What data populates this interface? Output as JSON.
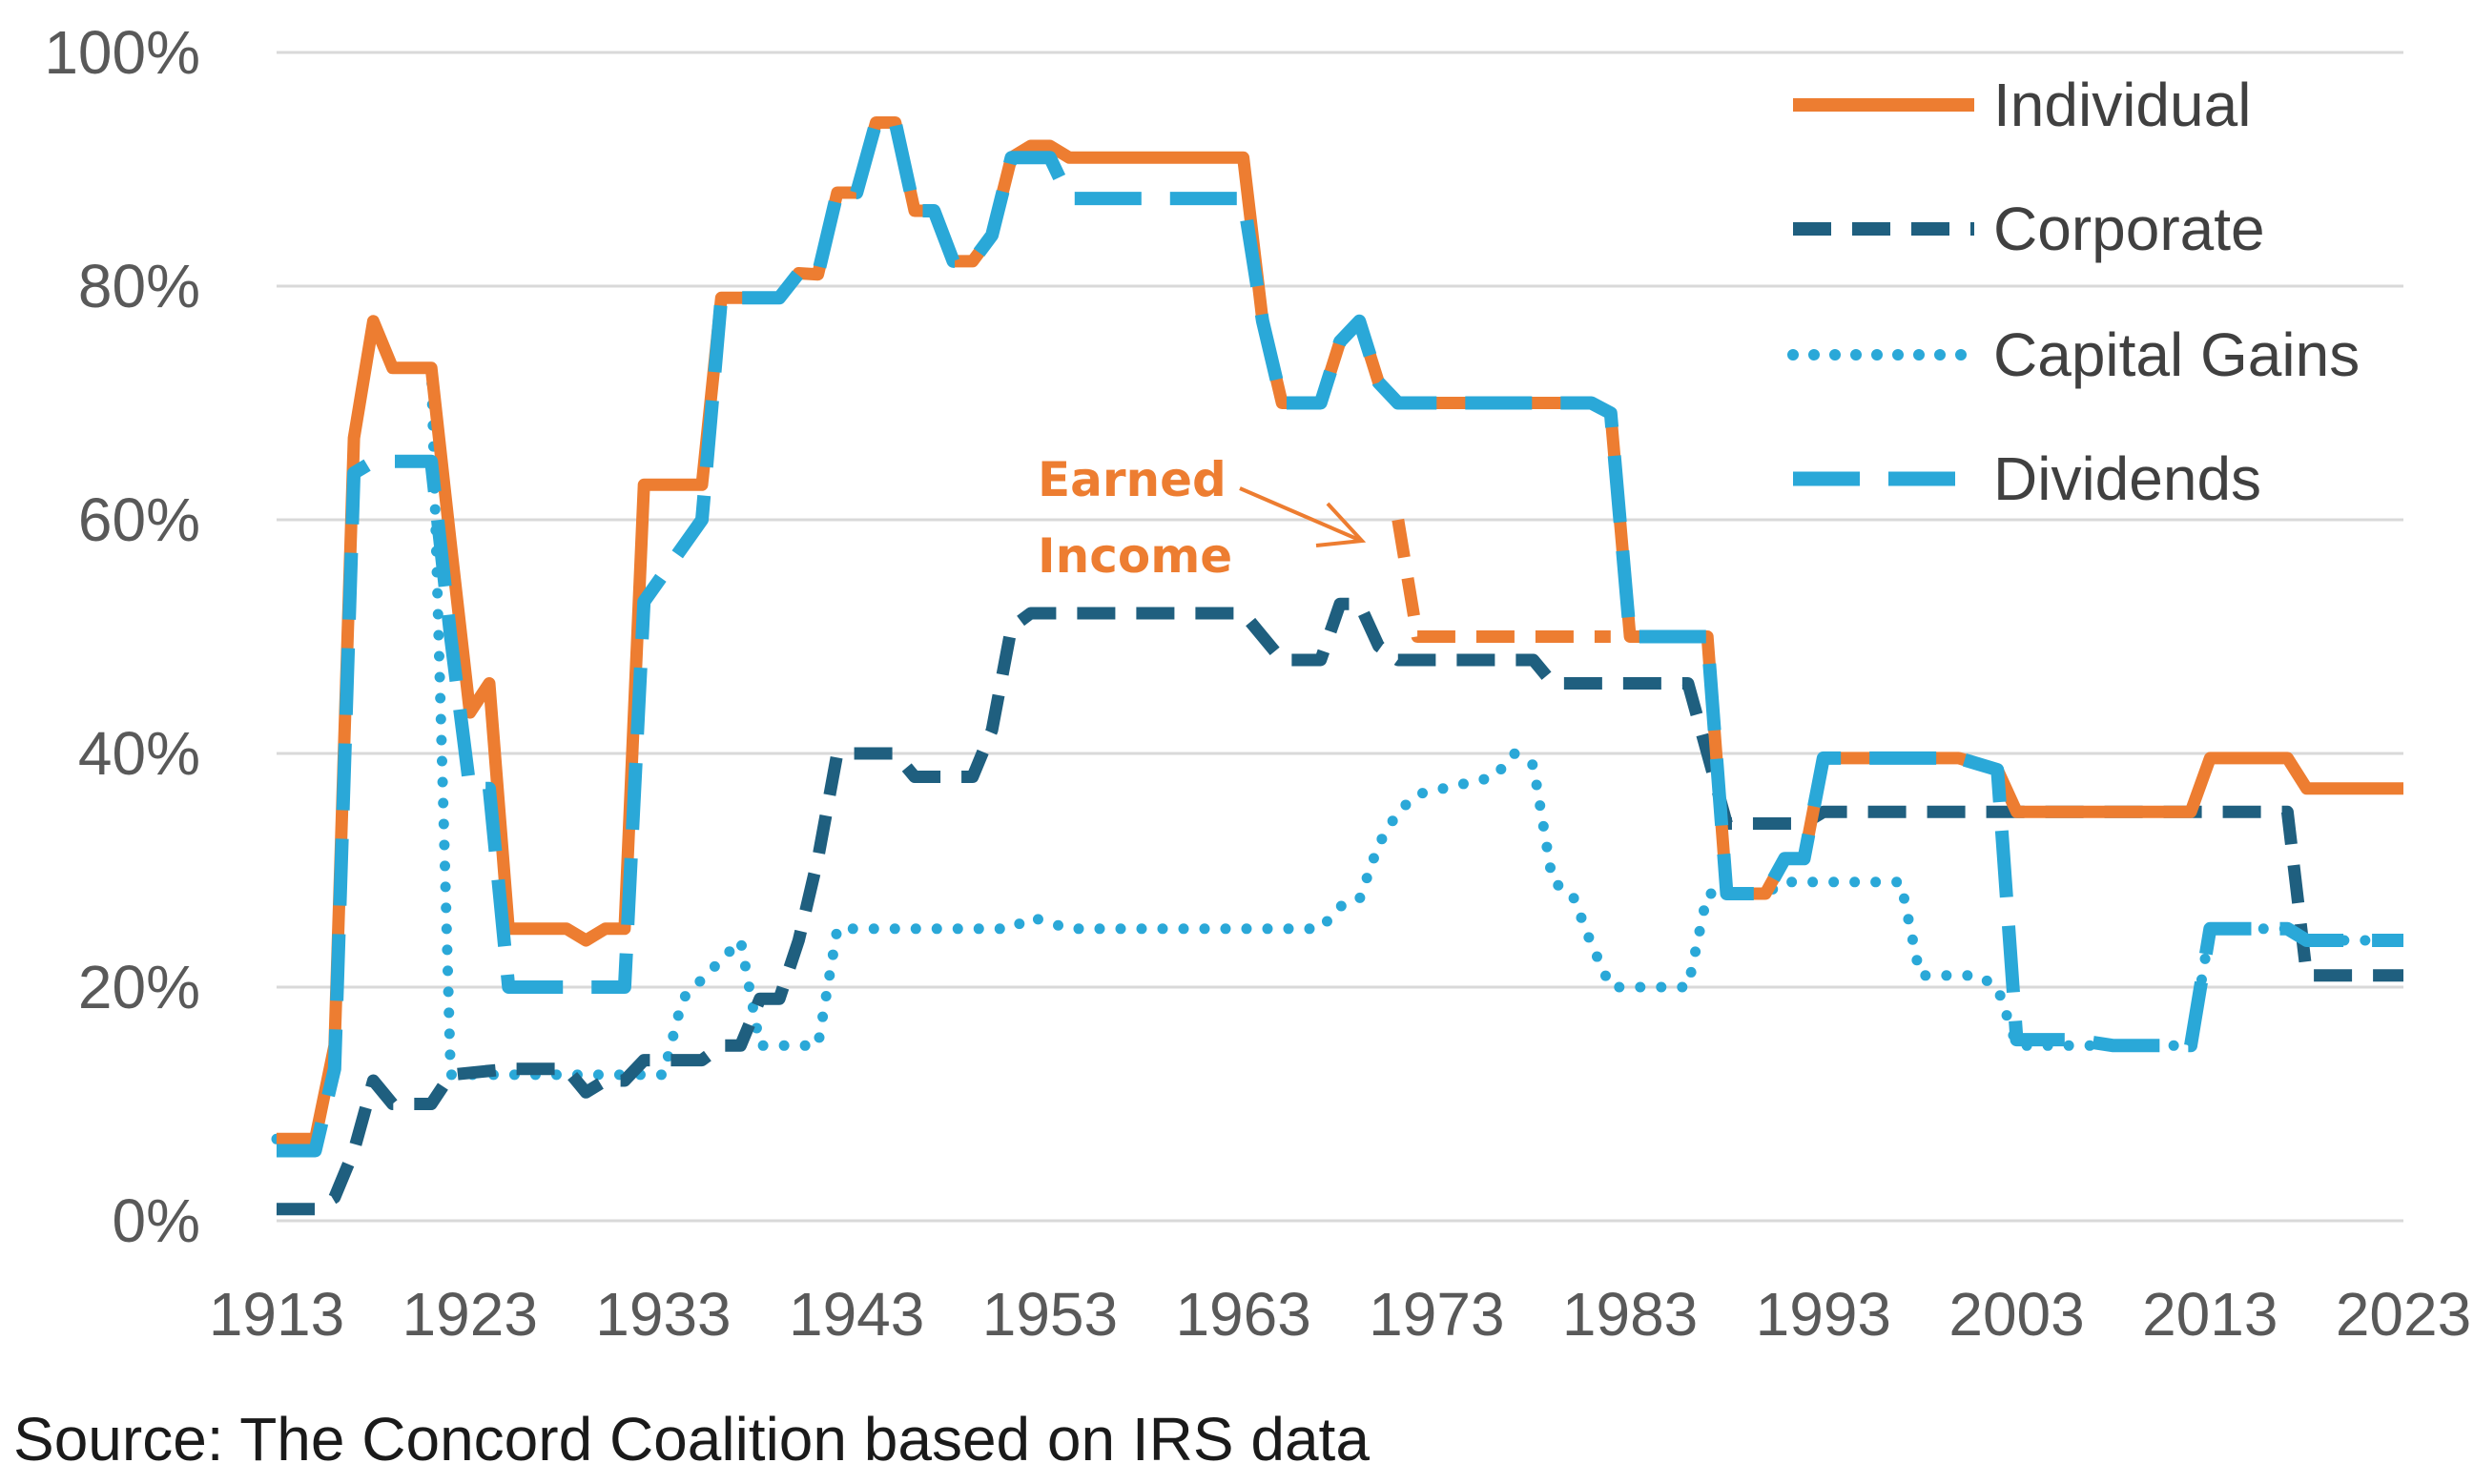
{
  "chart_data": {
    "type": "line",
    "title": "",
    "xlabel": "",
    "ylabel": "",
    "xlim": [
      1913,
      2023
    ],
    "ylim": [
      0,
      100
    ],
    "x_ticks": [
      "1913",
      "1923",
      "1933",
      "1943",
      "1953",
      "1963",
      "1973",
      "1983",
      "1993",
      "2003",
      "2013",
      "2023"
    ],
    "y_ticks": [
      "0%",
      "20%",
      "40%",
      "60%",
      "80%",
      "100%"
    ],
    "grid": "horizontal",
    "legend_position": "top-right",
    "series": [
      {
        "name": "Individual",
        "color": "#ED7D31",
        "style": "solid",
        "points": [
          [
            1913,
            7
          ],
          [
            1915,
            7
          ],
          [
            1916,
            15
          ],
          [
            1917,
            67
          ],
          [
            1918,
            77
          ],
          [
            1919,
            73
          ],
          [
            1921,
            73
          ],
          [
            1922,
            58
          ],
          [
            1923,
            43.5
          ],
          [
            1924,
            46
          ],
          [
            1925,
            25
          ],
          [
            1928,
            25
          ],
          [
            1929,
            24
          ],
          [
            1930,
            25
          ],
          [
            1931,
            25
          ],
          [
            1932,
            63
          ],
          [
            1935,
            63
          ],
          [
            1936,
            79
          ],
          [
            1939,
            79
          ],
          [
            1940,
            81.1
          ],
          [
            1941,
            81
          ],
          [
            1942,
            88
          ],
          [
            1943,
            88
          ],
          [
            1944,
            94
          ],
          [
            1945,
            94
          ],
          [
            1946,
            86.45
          ],
          [
            1947,
            86.45
          ],
          [
            1948,
            82.13
          ],
          [
            1949,
            82.13
          ],
          [
            1950,
            84.36
          ],
          [
            1951,
            91
          ],
          [
            1952,
            92
          ],
          [
            1953,
            92
          ],
          [
            1954,
            91
          ],
          [
            1963,
            91
          ],
          [
            1964,
            77
          ],
          [
            1965,
            70
          ],
          [
            1967,
            70
          ],
          [
            1968,
            75.25
          ],
          [
            1969,
            77
          ],
          [
            1970,
            71.75
          ],
          [
            1971,
            70
          ],
          [
            1981,
            70
          ],
          [
            1982,
            69.13
          ],
          [
            1983,
            50
          ],
          [
            1987,
            50
          ],
          [
            1988,
            28
          ],
          [
            1990,
            28
          ],
          [
            1991,
            31
          ],
          [
            1992,
            31
          ],
          [
            1993,
            39.6
          ],
          [
            2000,
            39.6
          ],
          [
            2001,
            39.1
          ],
          [
            2002,
            38.6
          ],
          [
            2003,
            35
          ],
          [
            2012,
            35
          ],
          [
            2013,
            39.6
          ],
          [
            2017,
            39.6
          ],
          [
            2018,
            37
          ],
          [
            2023,
            37
          ]
        ]
      },
      {
        "name": "Corporate",
        "color": "#1F5F7F",
        "style": "dashed",
        "points": [
          [
            1913,
            1
          ],
          [
            1915,
            1
          ],
          [
            1916,
            2
          ],
          [
            1917,
            6
          ],
          [
            1918,
            12
          ],
          [
            1919,
            10
          ],
          [
            1921,
            10
          ],
          [
            1922,
            12.5
          ],
          [
            1925,
            13
          ],
          [
            1928,
            13
          ],
          [
            1929,
            11
          ],
          [
            1930,
            12
          ],
          [
            1931,
            12
          ],
          [
            1932,
            13.75
          ],
          [
            1935,
            13.75
          ],
          [
            1936,
            15
          ],
          [
            1937,
            15
          ],
          [
            1938,
            19
          ],
          [
            1939,
            19
          ],
          [
            1940,
            24
          ],
          [
            1941,
            31
          ],
          [
            1942,
            40
          ],
          [
            1945,
            40
          ],
          [
            1946,
            38
          ],
          [
            1949,
            38
          ],
          [
            1950,
            42
          ],
          [
            1951,
            50.75
          ],
          [
            1952,
            52
          ],
          [
            1963,
            52
          ],
          [
            1964,
            50
          ],
          [
            1965,
            48
          ],
          [
            1967,
            48
          ],
          [
            1968,
            52.8
          ],
          [
            1969,
            52.8
          ],
          [
            1970,
            49.2
          ],
          [
            1971,
            48
          ],
          [
            1978,
            48
          ],
          [
            1979,
            46
          ],
          [
            1986,
            46
          ],
          [
            1987,
            40
          ],
          [
            1988,
            34
          ],
          [
            1992,
            34
          ],
          [
            1993,
            35
          ],
          [
            2017,
            35
          ],
          [
            2018,
            21
          ],
          [
            2023,
            21
          ]
        ]
      },
      {
        "name": "Capital Gains",
        "color": "#2AA8D8",
        "style": "dotted",
        "points": [
          [
            1913,
            7
          ],
          [
            1915,
            7
          ],
          [
            1916,
            15
          ],
          [
            1917,
            67
          ],
          [
            1918,
            77
          ],
          [
            1919,
            73
          ],
          [
            1921,
            73
          ],
          [
            1922,
            12.5
          ],
          [
            1933,
            12.5
          ],
          [
            1934,
            19
          ],
          [
            1937,
            24
          ],
          [
            1938,
            15
          ],
          [
            1941,
            15
          ],
          [
            1942,
            25
          ],
          [
            1951,
            25
          ],
          [
            1952,
            26
          ],
          [
            1954,
            25
          ],
          [
            1967,
            25
          ],
          [
            1968,
            26.9
          ],
          [
            1969,
            27.5
          ],
          [
            1970,
            32.21
          ],
          [
            1971,
            35
          ],
          [
            1972,
            36.5
          ],
          [
            1976,
            38
          ],
          [
            1977,
            40
          ],
          [
            1978,
            39
          ],
          [
            1979,
            29
          ],
          [
            1980,
            28
          ],
          [
            1981,
            23.7
          ],
          [
            1982,
            20
          ],
          [
            1986,
            20
          ],
          [
            1987,
            28
          ],
          [
            1990,
            28
          ],
          [
            1991,
            29
          ],
          [
            1997,
            29
          ],
          [
            1998,
            21
          ],
          [
            2001,
            21
          ],
          [
            2002,
            20
          ],
          [
            2003,
            15
          ],
          [
            2012,
            15
          ],
          [
            2013,
            25
          ],
          [
            2017,
            25
          ],
          [
            2018,
            24
          ],
          [
            2023,
            24
          ]
        ]
      },
      {
        "name": "Dividends",
        "color": "#2AA8D8",
        "style": "longdash",
        "points": [
          [
            1913,
            6
          ],
          [
            1915,
            6
          ],
          [
            1916,
            13
          ],
          [
            1917,
            64
          ],
          [
            1918,
            65
          ],
          [
            1921,
            65
          ],
          [
            1922,
            50
          ],
          [
            1923,
            37
          ],
          [
            1924,
            37
          ],
          [
            1925,
            20
          ],
          [
            1931,
            20
          ],
          [
            1932,
            53
          ],
          [
            1935,
            60
          ],
          [
            1936,
            79
          ],
          [
            1939,
            79
          ],
          [
            1940,
            81.1
          ],
          [
            1941,
            81
          ],
          [
            1942,
            88
          ],
          [
            1943,
            88
          ],
          [
            1944,
            94
          ],
          [
            1945,
            94
          ],
          [
            1946,
            86.45
          ],
          [
            1947,
            86.45
          ],
          [
            1948,
            82.13
          ],
          [
            1949,
            82.13
          ],
          [
            1950,
            84.36
          ],
          [
            1951,
            91
          ],
          [
            1953,
            91
          ],
          [
            1954,
            87.5
          ],
          [
            1963,
            87.5
          ],
          [
            1964,
            77
          ],
          [
            1965,
            70
          ],
          [
            1967,
            70
          ],
          [
            1968,
            75.25
          ],
          [
            1969,
            77
          ],
          [
            1970,
            71.75
          ],
          [
            1971,
            70
          ],
          [
            1981,
            70
          ],
          [
            1982,
            69.13
          ],
          [
            1983,
            50
          ],
          [
            1987,
            50
          ],
          [
            1988,
            28
          ],
          [
            1990,
            28
          ],
          [
            1991,
            31
          ],
          [
            1992,
            31
          ],
          [
            1993,
            39.6
          ],
          [
            2000,
            39.6
          ],
          [
            2001,
            39.1
          ],
          [
            2002,
            38.6
          ],
          [
            2003,
            15.5
          ],
          [
            2006,
            15.5
          ],
          [
            2008,
            15
          ],
          [
            2012,
            15
          ],
          [
            2013,
            25
          ],
          [
            2017,
            25
          ],
          [
            2018,
            24
          ],
          [
            2023,
            24
          ]
        ]
      },
      {
        "name": "Earned Income",
        "color": "#ED7D31",
        "style": "dashed",
        "points": [
          [
            1971,
            60
          ],
          [
            1972,
            50
          ],
          [
            1981,
            50
          ],
          [
            1982,
            50
          ]
        ]
      }
    ],
    "annotations": [
      {
        "text_line1": "Earned",
        "text_line2": "Income",
        "color": "#ED7D31",
        "arrow_to": [
          1970,
          58
        ]
      }
    ]
  },
  "source": "Source: The Concord Coalition based on IRS data"
}
